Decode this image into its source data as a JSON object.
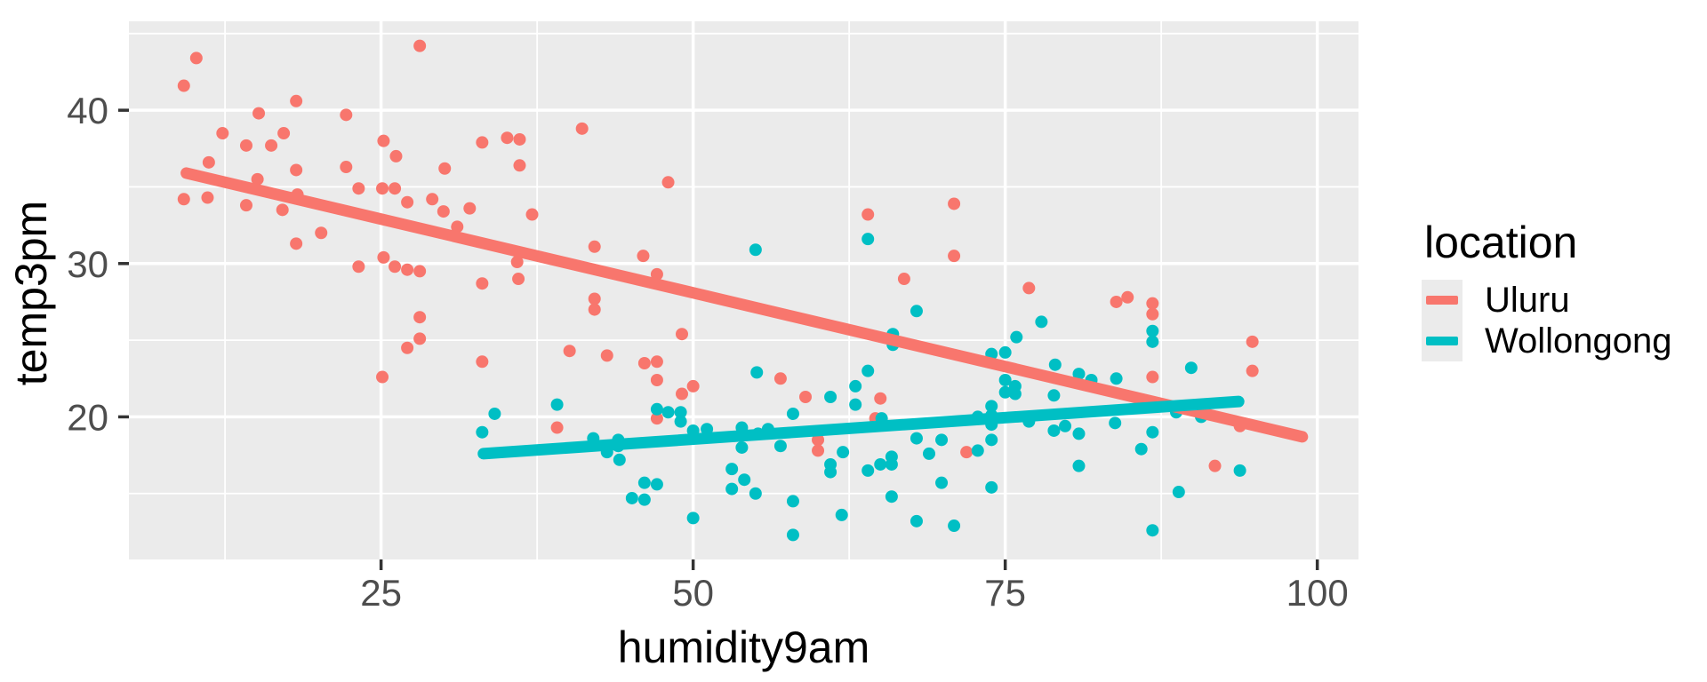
{
  "chart_data": {
    "type": "scatter",
    "title": "",
    "xlabel": "humidity9am",
    "ylabel": "temp3pm",
    "xlim": [
      4.8,
      103.3
    ],
    "ylim": [
      10.7,
      45.8
    ],
    "x_ticks": [
      25,
      50,
      75,
      100
    ],
    "y_ticks": [
      20,
      30,
      40
    ],
    "x_minor_gridlines": [
      12.5,
      37.5,
      62.5,
      87.5
    ],
    "y_minor_gridlines": [
      15,
      25,
      35,
      45
    ],
    "grid": "on",
    "legend": {
      "title": "location",
      "position": "right"
    },
    "style": {
      "panel_bg": "#EBEBEB",
      "grid_color": "#FFFFFF",
      "tick_color": "#333333",
      "tick_label_color": "#4D4D4D",
      "axis_title_color": "#000000"
    },
    "series": [
      {
        "name": "Uluru",
        "color": "#F8766D",
        "trend_line": [
          [
            9.4,
            35.9
          ],
          [
            98.8,
            18.7
          ]
        ],
        "points": [
          [
            10.2,
            43.4
          ],
          [
            9.2,
            41.6
          ],
          [
            28.1,
            44.2
          ],
          [
            18.2,
            40.6
          ],
          [
            15.2,
            39.8
          ],
          [
            22.2,
            39.7
          ],
          [
            12.3,
            38.5
          ],
          [
            14.2,
            37.7
          ],
          [
            17.2,
            38.5
          ],
          [
            16.2,
            37.7
          ],
          [
            25.2,
            38.0
          ],
          [
            26.2,
            37.0
          ],
          [
            33.1,
            37.9
          ],
          [
            35.1,
            38.2
          ],
          [
            36.1,
            38.1
          ],
          [
            11.2,
            36.6
          ],
          [
            30.1,
            36.2
          ],
          [
            36.1,
            36.4
          ],
          [
            22.2,
            36.3
          ],
          [
            18.2,
            36.1
          ],
          [
            15.1,
            35.5
          ],
          [
            18.3,
            34.5
          ],
          [
            9.2,
            34.2
          ],
          [
            11.1,
            34.3
          ],
          [
            14.2,
            33.8
          ],
          [
            17.1,
            33.5
          ],
          [
            23.2,
            34.9
          ],
          [
            25.1,
            34.9
          ],
          [
            26.1,
            34.9
          ],
          [
            27.1,
            34.0
          ],
          [
            29.1,
            34.2
          ],
          [
            30.0,
            33.4
          ],
          [
            31.1,
            32.4
          ],
          [
            32.1,
            33.6
          ],
          [
            37.1,
            33.2
          ],
          [
            20.2,
            32.0
          ],
          [
            18.2,
            31.3
          ],
          [
            25.2,
            30.4
          ],
          [
            23.2,
            29.8
          ],
          [
            26.1,
            29.8
          ],
          [
            27.1,
            29.6
          ],
          [
            28.1,
            29.5
          ],
          [
            33.1,
            28.7
          ],
          [
            35.9,
            30.1
          ],
          [
            36.0,
            29.0
          ],
          [
            41.1,
            38.8
          ],
          [
            48.0,
            35.3
          ],
          [
            64.0,
            33.2
          ],
          [
            70.9,
            33.9
          ],
          [
            42.1,
            31.1
          ],
          [
            46.0,
            30.5
          ],
          [
            70.9,
            30.5
          ],
          [
            47.1,
            29.3
          ],
          [
            66.9,
            29.0
          ],
          [
            76.9,
            28.4
          ],
          [
            28.1,
            26.5
          ],
          [
            28.1,
            25.1
          ],
          [
            27.1,
            24.5
          ],
          [
            33.1,
            23.6
          ],
          [
            25.1,
            22.6
          ],
          [
            42.1,
            27.7
          ],
          [
            42.1,
            27.0
          ],
          [
            49.1,
            25.4
          ],
          [
            40.1,
            24.3
          ],
          [
            43.1,
            24.0
          ],
          [
            46.1,
            23.5
          ],
          [
            47.1,
            23.6
          ],
          [
            47.1,
            22.4
          ],
          [
            50.0,
            22.0
          ],
          [
            49.1,
            21.5
          ],
          [
            57.0,
            22.5
          ],
          [
            59.0,
            21.3
          ],
          [
            47.1,
            19.9
          ],
          [
            39.1,
            19.3
          ],
          [
            60.0,
            18.5
          ],
          [
            60.0,
            17.8
          ],
          [
            65.0,
            21.2
          ],
          [
            64.6,
            19.9
          ],
          [
            71.9,
            17.7
          ],
          [
            83.9,
            27.5
          ],
          [
            84.8,
            27.8
          ],
          [
            86.8,
            27.4
          ],
          [
            86.8,
            26.7
          ],
          [
            94.8,
            24.9
          ],
          [
            86.8,
            22.6
          ],
          [
            94.8,
            23.0
          ],
          [
            91.8,
            16.8
          ],
          [
            93.8,
            19.4
          ]
        ]
      },
      {
        "name": "Wollongong",
        "color": "#00BFC4",
        "trend_line": [
          [
            33.2,
            17.6
          ],
          [
            93.7,
            21.0
          ]
        ],
        "points": [
          [
            64.0,
            31.6
          ],
          [
            55.0,
            30.9
          ],
          [
            34.1,
            20.2
          ],
          [
            33.1,
            19.0
          ],
          [
            67.9,
            26.9
          ],
          [
            66.0,
            25.4
          ],
          [
            66.0,
            24.7
          ],
          [
            55.1,
            22.9
          ],
          [
            64.0,
            23.0
          ],
          [
            63.0,
            22.0
          ],
          [
            61.0,
            21.3
          ],
          [
            39.1,
            20.8
          ],
          [
            63.0,
            20.8
          ],
          [
            47.1,
            20.5
          ],
          [
            48.0,
            20.3
          ],
          [
            49.0,
            20.3
          ],
          [
            49.0,
            19.7
          ],
          [
            58.0,
            20.2
          ],
          [
            65.1,
            19.9
          ],
          [
            50.0,
            19.1
          ],
          [
            51.1,
            19.2
          ],
          [
            53.9,
            19.3
          ],
          [
            55.2,
            18.9
          ],
          [
            56.0,
            19.2
          ],
          [
            42.0,
            18.6
          ],
          [
            44.0,
            18.5
          ],
          [
            44.0,
            18.1
          ],
          [
            43.1,
            17.7
          ],
          [
            44.1,
            17.2
          ],
          [
            53.9,
            18.0
          ],
          [
            57.0,
            18.1
          ],
          [
            62.0,
            17.7
          ],
          [
            61.0,
            16.9
          ],
          [
            61.0,
            16.4
          ],
          [
            64.0,
            16.5
          ],
          [
            65.0,
            16.9
          ],
          [
            65.9,
            17.4
          ],
          [
            65.9,
            16.9
          ],
          [
            53.1,
            16.6
          ],
          [
            54.1,
            15.9
          ],
          [
            53.1,
            15.3
          ],
          [
            46.1,
            15.7
          ],
          [
            47.1,
            15.6
          ],
          [
            45.1,
            14.7
          ],
          [
            46.1,
            14.6
          ],
          [
            55.0,
            15.0
          ],
          [
            50.0,
            13.4
          ],
          [
            58.0,
            14.5
          ],
          [
            61.9,
            13.6
          ],
          [
            58.0,
            12.3
          ],
          [
            65.9,
            14.8
          ],
          [
            67.9,
            13.2
          ],
          [
            69.9,
            15.7
          ],
          [
            67.9,
            18.6
          ],
          [
            68.9,
            17.6
          ],
          [
            69.9,
            18.5
          ],
          [
            70.9,
            12.9
          ],
          [
            77.9,
            26.2
          ],
          [
            75.9,
            25.2
          ],
          [
            86.8,
            25.6
          ],
          [
            86.8,
            24.9
          ],
          [
            73.9,
            24.1
          ],
          [
            75.0,
            24.2
          ],
          [
            79.0,
            23.4
          ],
          [
            80.9,
            22.8
          ],
          [
            81.9,
            22.4
          ],
          [
            83.9,
            22.5
          ],
          [
            89.9,
            23.2
          ],
          [
            75.0,
            22.4
          ],
          [
            75.0,
            21.6
          ],
          [
            75.8,
            22.0
          ],
          [
            75.8,
            21.5
          ],
          [
            78.9,
            21.4
          ],
          [
            73.9,
            20.7
          ],
          [
            73.9,
            20.1
          ],
          [
            73.9,
            19.5
          ],
          [
            72.8,
            20.0
          ],
          [
            76.9,
            19.7
          ],
          [
            88.7,
            20.3
          ],
          [
            90.7,
            20.0
          ],
          [
            83.8,
            19.6
          ],
          [
            79.8,
            19.4
          ],
          [
            78.9,
            19.1
          ],
          [
            80.9,
            18.9
          ],
          [
            86.8,
            19.0
          ],
          [
            73.9,
            18.5
          ],
          [
            72.8,
            17.8
          ],
          [
            85.9,
            17.9
          ],
          [
            80.9,
            16.8
          ],
          [
            93.8,
            16.5
          ],
          [
            73.9,
            15.4
          ],
          [
            88.9,
            15.1
          ],
          [
            86.8,
            12.6
          ]
        ]
      }
    ]
  }
}
